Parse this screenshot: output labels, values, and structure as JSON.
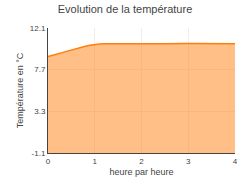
{
  "chart_data": {
    "type": "area",
    "title": "Evolution de la température",
    "xlabel": "heure par heure",
    "ylabel": "Température en °C",
    "x": [
      0,
      0.05,
      0.1,
      0.2,
      0.3,
      0.4,
      0.5,
      0.6,
      0.7,
      0.8,
      0.9,
      1.0,
      1.1,
      1.2,
      1.5,
      2.0,
      2.5,
      3.0,
      3.5,
      4.0
    ],
    "values": [
      9.1,
      9.15,
      9.2,
      9.35,
      9.5,
      9.65,
      9.8,
      9.92,
      10.05,
      10.18,
      10.28,
      10.38,
      10.42,
      10.44,
      10.46,
      10.46,
      10.45,
      10.46,
      10.45,
      10.44
    ],
    "baseline": -1.1,
    "xlim": [
      0,
      4
    ],
    "ylim": [
      -1.1,
      12.1
    ],
    "xticks": [
      0,
      1,
      2,
      3,
      4
    ],
    "yticks": [
      -1.1,
      3.3,
      7.7,
      12.1
    ],
    "grid": true
  }
}
